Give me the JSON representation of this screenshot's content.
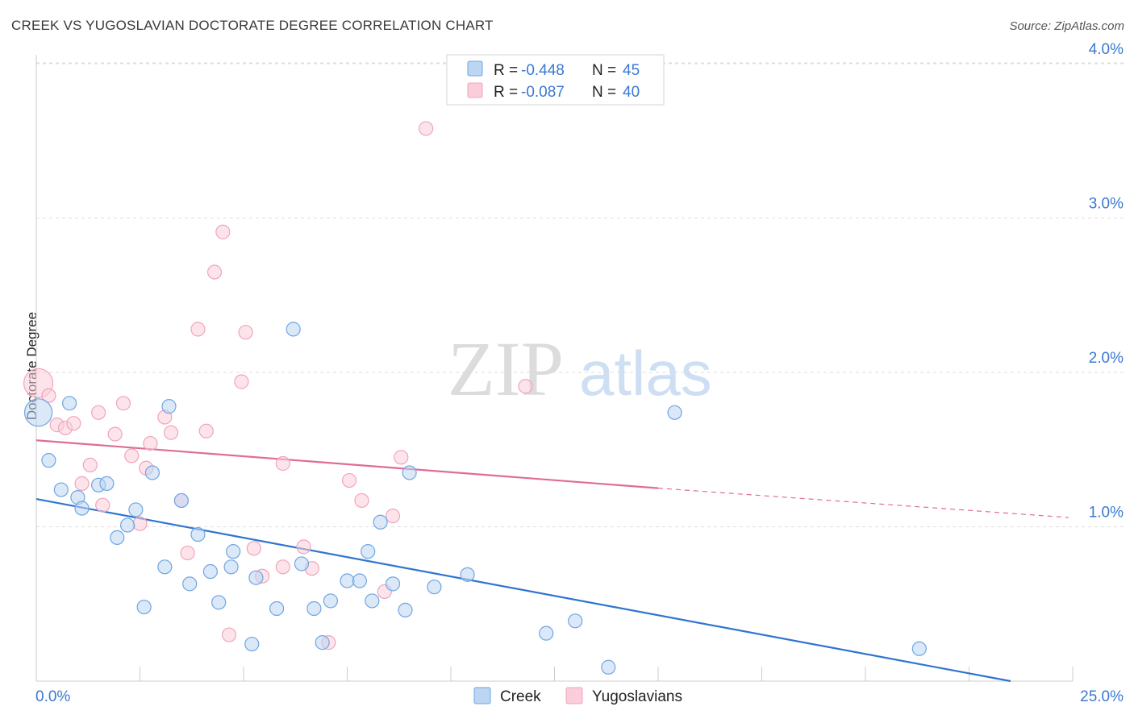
{
  "header": {
    "title": "CREEK VS YUGOSLAVIAN DOCTORATE DEGREE CORRELATION CHART",
    "source": "Source: ZipAtlas.com"
  },
  "watermark": {
    "zip": "ZIP",
    "atlas": "atlas"
  },
  "colors": {
    "creek": "#6fa6e3",
    "creek_fill": "#bcd5f3",
    "creek_line": "#2f74d0",
    "yugo": "#f0a5bb",
    "yugo_fill": "#f9cdd9",
    "yugo_line": "#e06c93",
    "axis_text": "#3a78d6",
    "grid": "#dddddd"
  },
  "legend_stats": [
    {
      "r_label": "R = ",
      "r_value": "-0.448",
      "n_label": "N = ",
      "n_value": "45"
    },
    {
      "r_label": "R = ",
      "r_value": "-0.087",
      "n_label": "N = ",
      "n_value": "40"
    }
  ],
  "chart_data": {
    "type": "scatter",
    "title": "CREEK VS YUGOSLAVIAN DOCTORATE DEGREE CORRELATION CHART",
    "xlabel": "",
    "ylabel": "Doctorate Degree",
    "xlim": [
      0,
      25
    ],
    "ylim": [
      0,
      4.1
    ],
    "x_tick_labels": [
      "0.0%",
      "25.0%"
    ],
    "y_ticks": [
      1.0,
      2.0,
      3.0,
      4.0
    ],
    "y_tick_labels": [
      "1.0%",
      "2.0%",
      "3.0%",
      "4.0%"
    ],
    "grid": true,
    "legend": "bottom-center",
    "series": [
      {
        "name": "Creek",
        "points": [
          [
            0.05,
            1.74
          ],
          [
            0.8,
            1.8
          ],
          [
            0.3,
            1.43
          ],
          [
            0.6,
            1.24
          ],
          [
            1.0,
            1.19
          ],
          [
            1.1,
            1.12
          ],
          [
            1.5,
            1.27
          ],
          [
            1.7,
            1.28
          ],
          [
            2.4,
            1.11
          ],
          [
            2.2,
            1.01
          ],
          [
            1.95,
            0.93
          ],
          [
            2.8,
            1.35
          ],
          [
            3.2,
            1.78
          ],
          [
            3.1,
            0.74
          ],
          [
            2.6,
            0.48
          ],
          [
            3.5,
            1.17
          ],
          [
            3.7,
            0.63
          ],
          [
            3.9,
            0.95
          ],
          [
            4.2,
            0.71
          ],
          [
            4.4,
            0.51
          ],
          [
            4.7,
            0.74
          ],
          [
            4.75,
            0.84
          ],
          [
            5.3,
            0.67
          ],
          [
            5.2,
            0.24
          ],
          [
            6.2,
            2.28
          ],
          [
            5.8,
            0.47
          ],
          [
            6.4,
            0.76
          ],
          [
            6.7,
            0.47
          ],
          [
            7.1,
            0.52
          ],
          [
            6.9,
            0.25
          ],
          [
            7.5,
            0.65
          ],
          [
            7.8,
            0.65
          ],
          [
            8.0,
            0.84
          ],
          [
            8.1,
            0.52
          ],
          [
            8.3,
            1.03
          ],
          [
            8.6,
            0.63
          ],
          [
            8.9,
            0.46
          ],
          [
            9.0,
            1.35
          ],
          [
            9.6,
            0.61
          ],
          [
            10.4,
            0.69
          ],
          [
            12.3,
            0.31
          ],
          [
            13.0,
            0.39
          ],
          [
            13.8,
            0.09
          ],
          [
            15.4,
            1.74
          ],
          [
            21.3,
            0.21
          ]
        ],
        "trend": {
          "x": [
            0,
            23.5
          ],
          "y": [
            1.18,
            0.0
          ]
        }
      },
      {
        "name": "Yugoslavians",
        "points": [
          [
            0.05,
            1.93
          ],
          [
            0.3,
            1.85
          ],
          [
            0.5,
            1.66
          ],
          [
            0.7,
            1.64
          ],
          [
            0.9,
            1.67
          ],
          [
            1.1,
            1.28
          ],
          [
            1.3,
            1.4
          ],
          [
            1.5,
            1.74
          ],
          [
            1.6,
            1.14
          ],
          [
            1.9,
            1.6
          ],
          [
            2.1,
            1.8
          ],
          [
            2.3,
            1.46
          ],
          [
            2.5,
            1.02
          ],
          [
            2.65,
            1.38
          ],
          [
            2.75,
            1.54
          ],
          [
            3.1,
            1.71
          ],
          [
            3.25,
            1.61
          ],
          [
            3.5,
            1.17
          ],
          [
            3.65,
            0.83
          ],
          [
            3.9,
            2.28
          ],
          [
            4.1,
            1.62
          ],
          [
            4.3,
            2.65
          ],
          [
            4.5,
            2.91
          ],
          [
            4.65,
            0.3
          ],
          [
            5.05,
            2.26
          ],
          [
            4.95,
            1.94
          ],
          [
            5.25,
            0.86
          ],
          [
            5.45,
            0.68
          ],
          [
            5.95,
            0.74
          ],
          [
            5.95,
            1.41
          ],
          [
            6.45,
            0.87
          ],
          [
            6.65,
            0.73
          ],
          [
            7.05,
            0.25
          ],
          [
            7.55,
            1.3
          ],
          [
            7.85,
            1.17
          ],
          [
            8.4,
            0.58
          ],
          [
            8.6,
            1.07
          ],
          [
            8.8,
            1.45
          ],
          [
            9.4,
            3.58
          ],
          [
            11.8,
            1.91
          ]
        ],
        "trend": {
          "x": [
            0,
            15.0
          ],
          "y": [
            1.56,
            1.25
          ]
        },
        "trend_dashed": {
          "x": [
            15.0,
            24.9
          ],
          "y": [
            1.25,
            1.06
          ]
        }
      }
    ]
  }
}
